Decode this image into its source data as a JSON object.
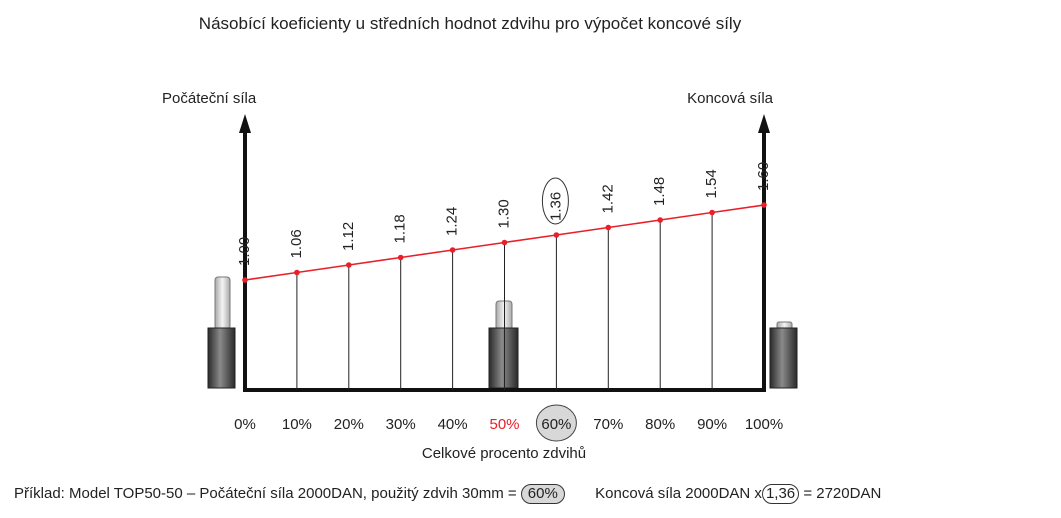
{
  "chart_data": {
    "type": "line",
    "title": "Násobící koeficienty u středních hodnot zdvihu pro výpočet koncové síly",
    "left_axis_label": "Počáteční síla",
    "right_axis_label": "Koncová síla",
    "xlabel": "Celkové procento zdvihů",
    "x": [
      "0%",
      "10%",
      "20%",
      "30%",
      "40%",
      "50%",
      "60%",
      "70%",
      "80%",
      "90%",
      "100%"
    ],
    "x_values": [
      0,
      10,
      20,
      30,
      40,
      50,
      60,
      70,
      80,
      90,
      100
    ],
    "values": [
      1.0,
      1.06,
      1.12,
      1.18,
      1.24,
      1.3,
      1.36,
      1.42,
      1.48,
      1.54,
      1.6
    ],
    "value_labels": [
      "1.00",
      "1.06",
      "1.12",
      "1.18",
      "1.24",
      "1.30",
      "1.36",
      "1.42",
      "1.48",
      "1.54",
      "1.60"
    ],
    "highlighted_tick": "50%",
    "circled_tick": "60%",
    "circled_value": "1.36",
    "line_color": "#e8202a",
    "highlight_color": "#e8202a",
    "axis_color": "#111111",
    "circle_fill": "#d8d8d8"
  },
  "footer": {
    "example_text": "Příklad: Model TOP50-50 – Počáteční síla 2000DAN, použitý zdvih 30mm =",
    "example_circled": "60%",
    "result_prefix": "Koncová síla  2000DAN x",
    "result_circled": "1,36",
    "result_suffix": "= 2720DAN"
  }
}
